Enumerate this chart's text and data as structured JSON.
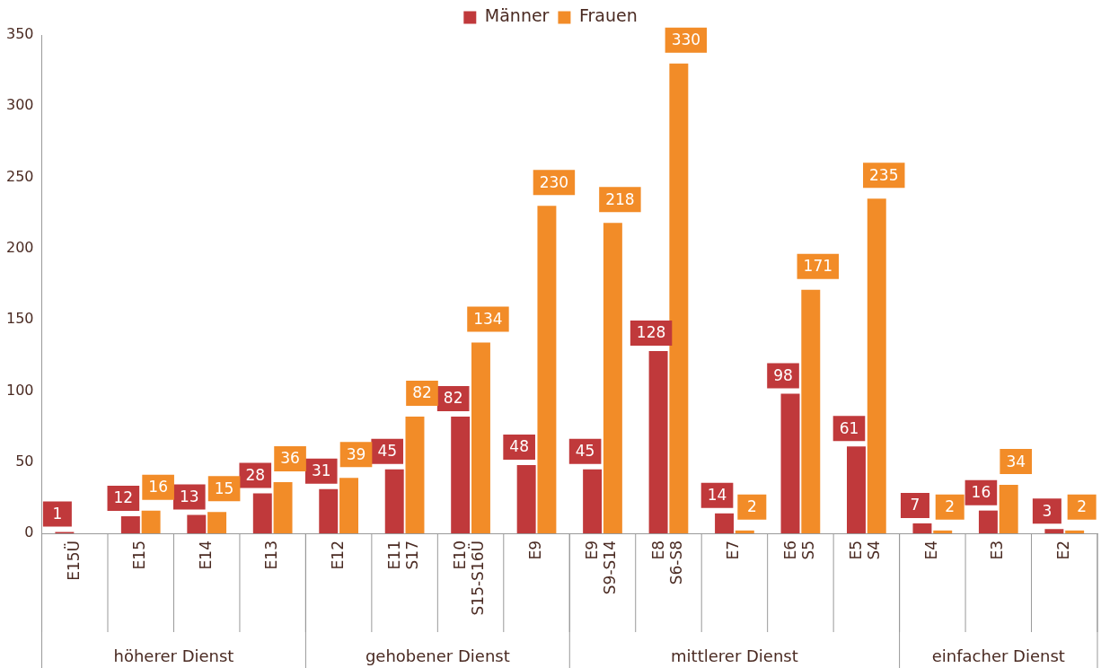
{
  "chart_data": {
    "type": "bar",
    "categories": [
      "E15Ü",
      "E15",
      "E14",
      "E13",
      "E12",
      "E11 S17",
      "E10 S15-S16Ü",
      "E9",
      "E9 S9-S14",
      "E8 S6-S8",
      "E7",
      "E6 S5",
      "E5 S4",
      "E4",
      "E3",
      "E2"
    ],
    "series": [
      {
        "name": "Männer",
        "color": "#c0393b",
        "values": [
          1,
          12,
          13,
          28,
          31,
          45,
          82,
          48,
          45,
          128,
          14,
          98,
          61,
          7,
          16,
          3
        ]
      },
      {
        "name": "Frauen",
        "color": "#f28c28",
        "values": [
          null,
          16,
          15,
          36,
          39,
          82,
          134,
          230,
          218,
          330,
          2,
          171,
          235,
          2,
          34,
          2
        ]
      }
    ],
    "ylim": [
      0,
      350
    ],
    "yticks": [
      0,
      50,
      100,
      150,
      200,
      250,
      300,
      350
    ],
    "grid": false,
    "legend": "top",
    "data_labels": true,
    "annotations": [
      "höherer Dienst",
      "gehobener Dienst",
      "mittlerer Dienst",
      "einfacher Dienst"
    ]
  }
}
